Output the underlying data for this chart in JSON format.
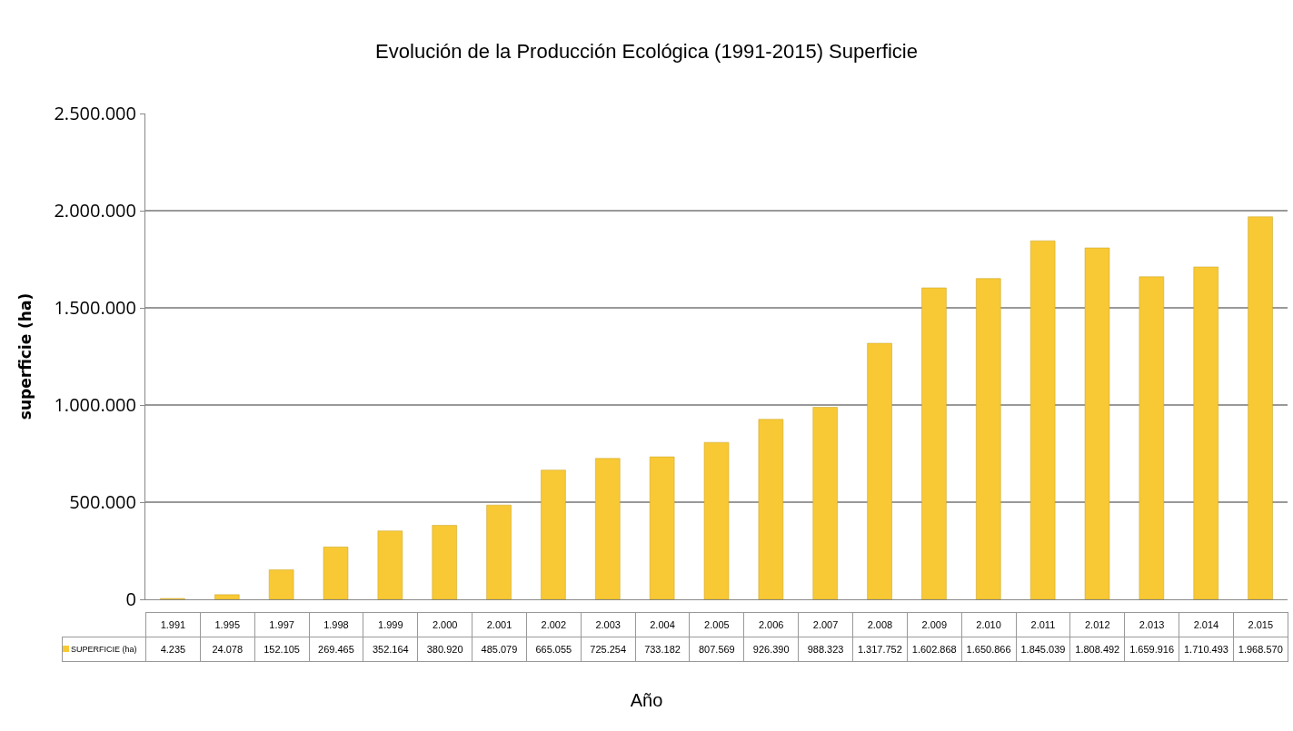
{
  "chart_data": {
    "type": "bar",
    "title": "Evolución de la Producción Ecológica (1991-2015) Superficie",
    "xlabel": "Año",
    "ylabel": "superficie (ha)",
    "categories": [
      "1.991",
      "1.995",
      "1.997",
      "1.998",
      "1.999",
      "2.000",
      "2.001",
      "2.002",
      "2.003",
      "2.004",
      "2.005",
      "2.006",
      "2.007",
      "2.008",
      "2.009",
      "2.010",
      "2.011",
      "2.012",
      "2.013",
      "2.014",
      "2.015"
    ],
    "series": [
      {
        "name": "SUPERFICIE (ha)",
        "color": "#f8c935",
        "values": [
          4235,
          24078,
          152105,
          269465,
          352164,
          380920,
          485079,
          665055,
          725254,
          733182,
          807569,
          926390,
          988323,
          1317752,
          1602868,
          1650866,
          1845039,
          1808492,
          1659916,
          1710493,
          1968570
        ],
        "value_labels": [
          "4.235",
          "24.078",
          "152.105",
          "269.465",
          "352.164",
          "380.920",
          "485.079",
          "665.055",
          "725.254",
          "733.182",
          "807.569",
          "926.390",
          "988.323",
          "1.317.752",
          "1.602.868",
          "1.650.866",
          "1.845.039",
          "1.808.492",
          "1.659.916",
          "1.710.493",
          "1.968.570"
        ]
      }
    ],
    "ylim": [
      0,
      2500000
    ],
    "yticks": [
      {
        "value": 0,
        "label": "0"
      },
      {
        "value": 500000,
        "label": "500.000"
      },
      {
        "value": 1000000,
        "label": "1.000.000"
      },
      {
        "value": 1500000,
        "label": "1.500.000"
      },
      {
        "value": 2000000,
        "label": "2.000.000"
      },
      {
        "value": 2500000,
        "label": "2.500.000"
      }
    ],
    "grid": "y"
  }
}
